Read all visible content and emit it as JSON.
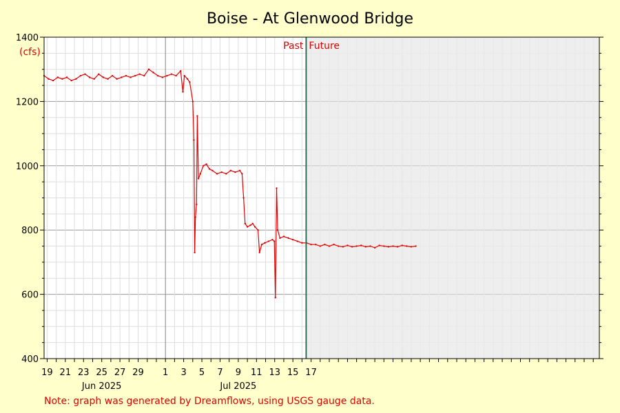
{
  "chart_data": {
    "type": "line",
    "title": "Boise - At Glenwood Bridge",
    "ylabel": "(cfs)",
    "ylim": [
      400,
      1400
    ],
    "yticks": [
      400,
      600,
      800,
      1000,
      1200,
      1400
    ],
    "xlim": [
      "2025-05-18T16:00",
      "2025-07-18T16:00"
    ],
    "x_day_labels": [
      {
        "date": "2025-05-19",
        "label": "19"
      },
      {
        "date": "2025-05-21",
        "label": "21"
      },
      {
        "date": "2025-05-23",
        "label": "23"
      },
      {
        "date": "2025-05-25",
        "label": "25"
      },
      {
        "date": "2025-05-27",
        "label": "27"
      },
      {
        "date": "2025-05-29",
        "label": "29"
      },
      {
        "date": "2025-06-01",
        "label": "1"
      },
      {
        "date": "2025-06-03",
        "label": "3"
      },
      {
        "date": "2025-06-05",
        "label": "5"
      },
      {
        "date": "2025-06-07",
        "label": "7"
      },
      {
        "date": "2025-06-09",
        "label": "9"
      },
      {
        "date": "2025-06-11",
        "label": "11"
      },
      {
        "date": "2025-06-13",
        "label": "13"
      },
      {
        "date": "2025-06-15",
        "label": "15"
      },
      {
        "date": "2025-06-17",
        "label": "17"
      }
    ],
    "x_month_labels": [
      {
        "date": "2025-05-25",
        "label": "Jun 2025"
      },
      {
        "date": "2025-06-09",
        "label": "Jul 2025"
      }
    ],
    "month_boundaries": [
      "2025-06-01"
    ],
    "now": "2025-06-16T11:00",
    "past_label": "Past",
    "future_label": "Future",
    "grid": true,
    "series": [
      {
        "color": "#e00000",
        "points": [
          [
            "2025-05-18T16:00",
            1280
          ],
          [
            "2025-05-19T04:00",
            1270
          ],
          [
            "2025-05-19T16:00",
            1265
          ],
          [
            "2025-05-20T04:00",
            1275
          ],
          [
            "2025-05-20T16:00",
            1270
          ],
          [
            "2025-05-21T04:00",
            1275
          ],
          [
            "2025-05-21T16:00",
            1265
          ],
          [
            "2025-05-22T04:00",
            1270
          ],
          [
            "2025-05-22T16:00",
            1280
          ],
          [
            "2025-05-23T04:00",
            1285
          ],
          [
            "2025-05-23T16:00",
            1275
          ],
          [
            "2025-05-24T04:00",
            1270
          ],
          [
            "2025-05-24T16:00",
            1285
          ],
          [
            "2025-05-25T04:00",
            1275
          ],
          [
            "2025-05-25T16:00",
            1270
          ],
          [
            "2025-05-26T04:00",
            1280
          ],
          [
            "2025-05-26T16:00",
            1270
          ],
          [
            "2025-05-27T04:00",
            1275
          ],
          [
            "2025-05-27T16:00",
            1280
          ],
          [
            "2025-05-28T04:00",
            1275
          ],
          [
            "2025-05-28T16:00",
            1280
          ],
          [
            "2025-05-29T04:00",
            1285
          ],
          [
            "2025-05-29T16:00",
            1280
          ],
          [
            "2025-05-30T04:00",
            1300
          ],
          [
            "2025-05-30T16:00",
            1290
          ],
          [
            "2025-05-31T04:00",
            1280
          ],
          [
            "2025-05-31T16:00",
            1275
          ],
          [
            "2025-06-01T04:00",
            1280
          ],
          [
            "2025-06-01T16:00",
            1285
          ],
          [
            "2025-06-02T04:00",
            1280
          ],
          [
            "2025-06-02T16:00",
            1295
          ],
          [
            "2025-06-02T22:00",
            1230
          ],
          [
            "2025-06-03T02:00",
            1280
          ],
          [
            "2025-06-03T10:00",
            1270
          ],
          [
            "2025-06-03T16:00",
            1260
          ],
          [
            "2025-06-04T00:00",
            1200
          ],
          [
            "2025-06-04T03:00",
            1080
          ],
          [
            "2025-06-04T05:00",
            730
          ],
          [
            "2025-06-04T07:00",
            840
          ],
          [
            "2025-06-04T10:00",
            880
          ],
          [
            "2025-06-04T12:00",
            1155
          ],
          [
            "2025-06-04T15:00",
            960
          ],
          [
            "2025-06-04T20:00",
            975
          ],
          [
            "2025-06-05T04:00",
            1000
          ],
          [
            "2025-06-05T12:00",
            1005
          ],
          [
            "2025-06-05T20:00",
            990
          ],
          [
            "2025-06-06T04:00",
            985
          ],
          [
            "2025-06-06T16:00",
            975
          ],
          [
            "2025-06-07T04:00",
            980
          ],
          [
            "2025-06-07T16:00",
            975
          ],
          [
            "2025-06-08T04:00",
            985
          ],
          [
            "2025-06-08T16:00",
            980
          ],
          [
            "2025-06-09T04:00",
            985
          ],
          [
            "2025-06-09T10:00",
            975
          ],
          [
            "2025-06-09T14:00",
            900
          ],
          [
            "2025-06-09T18:00",
            820
          ],
          [
            "2025-06-10T00:00",
            810
          ],
          [
            "2025-06-10T08:00",
            815
          ],
          [
            "2025-06-10T14:00",
            820
          ],
          [
            "2025-06-10T20:00",
            810
          ],
          [
            "2025-06-11T04:00",
            800
          ],
          [
            "2025-06-11T08:00",
            730
          ],
          [
            "2025-06-11T14:00",
            755
          ],
          [
            "2025-06-11T22:00",
            760
          ],
          [
            "2025-06-12T08:00",
            765
          ],
          [
            "2025-06-12T18:00",
            770
          ],
          [
            "2025-06-12T23:00",
            765
          ],
          [
            "2025-06-13T02:00",
            590
          ],
          [
            "2025-06-13T05:00",
            930
          ],
          [
            "2025-06-13T08:00",
            800
          ],
          [
            "2025-06-13T14:00",
            775
          ],
          [
            "2025-06-14T00:00",
            780
          ],
          [
            "2025-06-14T12:00",
            775
          ],
          [
            "2025-06-15T00:00",
            770
          ],
          [
            "2025-06-15T12:00",
            765
          ],
          [
            "2025-06-16T00:00",
            760
          ],
          [
            "2025-06-16T12:00",
            760
          ],
          [
            "2025-06-17T00:00",
            755
          ],
          [
            "2025-06-17T12:00",
            755
          ],
          [
            "2025-06-18T00:00",
            750
          ],
          [
            "2025-06-18T12:00",
            755
          ],
          [
            "2025-06-19T00:00",
            750
          ],
          [
            "2025-06-19T12:00",
            755
          ],
          [
            "2025-06-20T00:00",
            750
          ],
          [
            "2025-06-20T12:00",
            748
          ],
          [
            "2025-06-21T00:00",
            752
          ],
          [
            "2025-06-21T12:00",
            748
          ],
          [
            "2025-06-22T00:00",
            750
          ],
          [
            "2025-06-22T12:00",
            752
          ],
          [
            "2025-06-23T00:00",
            748
          ],
          [
            "2025-06-23T12:00",
            750
          ],
          [
            "2025-06-24T00:00",
            745
          ],
          [
            "2025-06-24T12:00",
            752
          ],
          [
            "2025-06-25T00:00",
            750
          ],
          [
            "2025-06-25T12:00",
            748
          ],
          [
            "2025-06-26T00:00",
            750
          ],
          [
            "2025-06-26T12:00",
            748
          ],
          [
            "2025-06-27T00:00",
            752
          ],
          [
            "2025-06-27T12:00",
            750
          ],
          [
            "2025-06-28T00:00",
            748
          ],
          [
            "2025-06-28T12:00",
            750
          ]
        ]
      }
    ],
    "note": "Note: graph was generated by Dreamflows, using USGS gauge data."
  }
}
